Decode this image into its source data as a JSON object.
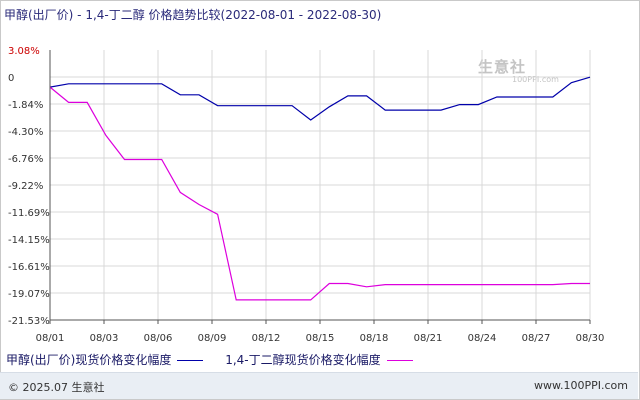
{
  "title": "甲醇(出厂价) - 1,4-丁二醇 价格趋势比较(2022-08-01 - 2022-08-30)",
  "watermark": {
    "text": "生意社",
    "url": "100PPI.com"
  },
  "footer": {
    "left": "© 2025.07 生意社",
    "right": "www.100PPI.com"
  },
  "colors": {
    "series1": "#0000aa",
    "series2": "#dd00dd",
    "axis": "#555555",
    "grid": "#d8d8d8",
    "positive_label": "#cc0000"
  },
  "chart_data": {
    "type": "line",
    "title": "甲醇(出厂价) - 1,4-丁二醇 价格趋势比较(2022-08-01 - 2022-08-30)",
    "x_ticks": [
      "08/01",
      "08/03",
      "08/06",
      "08/09",
      "08/12",
      "08/15",
      "08/18",
      "08/21",
      "08/24",
      "08/27",
      "08/30"
    ],
    "y_ticks": [
      "3.08%",
      "0",
      "-1.84%",
      "-4.30%",
      "-6.76%",
      "-9.22%",
      "-11.69%",
      "-14.15%",
      "-16.61%",
      "-19.07%",
      "-21.53%"
    ],
    "ylim": [
      -21.53,
      3.08
    ],
    "xlim": [
      "2022-08-01",
      "2022-08-30"
    ],
    "grid": true,
    "legend_position": "bottom",
    "series": [
      {
        "name": "甲醇(出厂价)现货价格变化幅度",
        "color": "#0000aa",
        "points": [
          [
            "2022-08-01",
            -0.3
          ],
          [
            "2022-08-02",
            0.0
          ],
          [
            "2022-08-07",
            0.0
          ],
          [
            "2022-08-08",
            -1.0
          ],
          [
            "2022-08-09",
            -1.0
          ],
          [
            "2022-08-10",
            -2.0
          ],
          [
            "2022-08-14",
            -2.0
          ],
          [
            "2022-08-15",
            -3.3
          ],
          [
            "2022-08-16",
            -2.1
          ],
          [
            "2022-08-17",
            -1.1
          ],
          [
            "2022-08-18",
            -1.1
          ],
          [
            "2022-08-19",
            -2.4
          ],
          [
            "2022-08-22",
            -2.4
          ],
          [
            "2022-08-23",
            -1.9
          ],
          [
            "2022-08-24",
            -1.9
          ],
          [
            "2022-08-25",
            -1.2
          ],
          [
            "2022-08-28",
            -1.2
          ],
          [
            "2022-08-29",
            0.1
          ],
          [
            "2022-08-30",
            0.6
          ]
        ]
      },
      {
        "name": "1,4-丁二醇现货价格变化幅度",
        "color": "#dd00dd",
        "points": [
          [
            "2022-08-01",
            -0.3
          ],
          [
            "2022-08-02",
            -1.7
          ],
          [
            "2022-08-03",
            -1.7
          ],
          [
            "2022-08-04",
            -4.7
          ],
          [
            "2022-08-05",
            -6.9
          ],
          [
            "2022-08-06",
            -6.9
          ],
          [
            "2022-08-07",
            -6.9
          ],
          [
            "2022-08-08",
            -9.9
          ],
          [
            "2022-08-09",
            -11.0
          ],
          [
            "2022-08-10",
            -11.9
          ],
          [
            "2022-08-11",
            -19.7
          ],
          [
            "2022-08-14",
            -19.7
          ],
          [
            "2022-08-15",
            -19.7
          ],
          [
            "2022-08-16",
            -18.2
          ],
          [
            "2022-08-17",
            -18.2
          ],
          [
            "2022-08-18",
            -18.5
          ],
          [
            "2022-08-19",
            -18.3
          ],
          [
            "2022-08-28",
            -18.3
          ],
          [
            "2022-08-29",
            -18.2
          ],
          [
            "2022-08-30",
            -18.2
          ]
        ]
      }
    ]
  }
}
